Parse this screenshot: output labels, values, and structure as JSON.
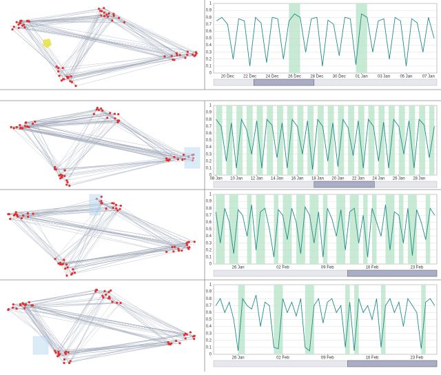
{
  "chart_data": [
    {
      "type": "line",
      "categories": [
        null,
        null,
        "20 Dec",
        null,
        null,
        null,
        "22 Dec",
        null,
        null,
        null,
        "24 Dec",
        null,
        null,
        null,
        "26 Dec",
        null,
        null,
        null,
        "28 Dec",
        null,
        null,
        null,
        "30 Dec",
        null,
        null,
        null,
        "01 Jan",
        null,
        null,
        null,
        "03 Jan",
        null,
        null,
        null,
        "05 Jan",
        null,
        null,
        null,
        "07 Jan",
        null
      ],
      "values": [
        0.75,
        0.8,
        0.7,
        0.2,
        0.78,
        0.75,
        0.1,
        0.8,
        0.72,
        0.15,
        0.8,
        0.78,
        0.2,
        0.75,
        0.85,
        0.8,
        0.3,
        0.78,
        0.8,
        0.1,
        0.76,
        0.7,
        0.25,
        0.8,
        0.78,
        0.12,
        0.85,
        0.8,
        0.3,
        0.75,
        0.78,
        0.2,
        0.8,
        0.75,
        0.1,
        0.78,
        0.72,
        0.3,
        0.8,
        0.5
      ],
      "color": "#1f8a8a",
      "highlight_color": "#c6ead3",
      "highlights": [
        [
          13,
          15
        ],
        [
          25,
          27
        ]
      ],
      "ylim": [
        0,
        1
      ],
      "yticks": [
        0,
        0.1,
        0.2,
        0.3,
        0.4,
        0.5,
        0.6,
        0.7,
        0.8,
        0.9,
        1
      ],
      "grid": true
    },
    {
      "type": "line",
      "categories": [
        "08 Jan",
        null,
        null,
        null,
        "10 Jan",
        null,
        null,
        null,
        "12 Jan",
        null,
        null,
        null,
        "14 Jan",
        null,
        null,
        null,
        "16 Jan",
        null,
        null,
        null,
        "18 Jan",
        null,
        null,
        null,
        "20 Jan",
        null,
        null,
        null,
        "22 Jan",
        null,
        null,
        null,
        "24 Jan",
        null,
        null,
        null,
        "26 Jan",
        null,
        null,
        null,
        "28 Jan",
        null,
        null,
        null
      ],
      "values": [
        0.8,
        0.7,
        0.2,
        0.75,
        0.1,
        0.8,
        0.65,
        0.3,
        0.78,
        0.1,
        0.8,
        0.72,
        0.25,
        0.75,
        0.1,
        0.8,
        0.7,
        0.3,
        0.78,
        0.08,
        0.8,
        0.7,
        0.2,
        0.75,
        0.12,
        0.8,
        0.68,
        0.28,
        0.78,
        0.1,
        0.8,
        0.7,
        0.2,
        0.76,
        0.1,
        0.8,
        0.7,
        0.3,
        0.78,
        0.1,
        0.8,
        0.72,
        0.25,
        0.7
      ],
      "color": "#1f8a8a",
      "highlight_color": "#c6ead3",
      "highlights": [
        [
          0,
          1.2
        ],
        [
          2,
          3.2
        ],
        [
          4,
          5.2
        ],
        [
          6,
          7.2
        ],
        [
          8,
          9.2
        ],
        [
          10,
          11.2
        ],
        [
          12,
          13.2
        ],
        [
          14,
          15.2
        ],
        [
          16,
          17.2
        ],
        [
          18,
          19.2
        ],
        [
          20,
          21.2
        ],
        [
          22,
          23.2
        ],
        [
          24,
          25.2
        ],
        [
          26,
          27.2
        ],
        [
          28,
          29.2
        ],
        [
          30,
          31.2
        ],
        [
          32,
          33.2
        ],
        [
          34,
          35.2
        ],
        [
          36,
          37.2
        ],
        [
          38,
          39.2
        ],
        [
          40,
          41.2
        ],
        [
          42,
          43
        ]
      ],
      "ylim": [
        0,
        1
      ],
      "yticks": [
        0,
        0.1,
        0.2,
        0.3,
        0.4,
        0.5,
        0.6,
        0.7,
        0.8,
        0.9,
        1
      ],
      "grid": true
    },
    {
      "type": "line",
      "categories": [
        null,
        null,
        null,
        null,
        null,
        "26 Jan",
        null,
        null,
        null,
        null,
        null,
        null,
        null,
        null,
        null,
        "02 Feb",
        null,
        null,
        null,
        null,
        null,
        null,
        null,
        null,
        null,
        "09 Feb",
        null,
        null,
        null,
        null,
        null,
        null,
        null,
        null,
        null,
        "16 Feb",
        null,
        null,
        null,
        null,
        null,
        null,
        null,
        null,
        null,
        "23 Feb",
        null,
        null,
        null,
        null
      ],
      "values": [
        0.75,
        0.3,
        0.8,
        0.6,
        0.15,
        0.78,
        0.7,
        0.4,
        0.85,
        0.2,
        0.75,
        0.8,
        0.5,
        0.1,
        0.78,
        0.7,
        0.35,
        0.8,
        0.6,
        0.15,
        0.82,
        0.7,
        0.3,
        0.75,
        0.1,
        0.8,
        0.65,
        0.4,
        0.78,
        0.2,
        0.75,
        0.8,
        0.3,
        0.7,
        0.1,
        0.8,
        0.6,
        0.4,
        0.85,
        0.2,
        0.75,
        0.7,
        0.3,
        0.8,
        0.12,
        0.78,
        0.6,
        0.35,
        0.8,
        0.7
      ],
      "color": "#1f8a8a",
      "highlight_color": "#c6ead3",
      "highlights": [
        [
          0,
          2
        ],
        [
          3,
          5
        ],
        [
          7,
          8
        ],
        [
          9,
          11
        ],
        [
          13,
          14
        ],
        [
          15,
          17
        ],
        [
          18,
          20
        ],
        [
          21,
          23
        ],
        [
          24,
          25
        ],
        [
          27,
          29
        ],
        [
          30,
          32
        ],
        [
          33,
          34
        ],
        [
          35,
          36
        ],
        [
          38,
          40
        ],
        [
          41,
          42
        ],
        [
          43,
          45
        ],
        [
          47,
          48
        ]
      ],
      "ylim": [
        0,
        1
      ],
      "yticks": [
        0,
        0.1,
        0.2,
        0.3,
        0.4,
        0.5,
        0.6,
        0.7,
        0.8,
        0.9,
        1
      ],
      "grid": true
    },
    {
      "type": "line",
      "categories": [
        null,
        null,
        null,
        null,
        null,
        "26 Jan",
        null,
        null,
        null,
        null,
        null,
        null,
        null,
        null,
        null,
        "02 Feb",
        null,
        null,
        null,
        null,
        null,
        null,
        null,
        null,
        null,
        "09 Feb",
        null,
        null,
        null,
        null,
        null,
        null,
        null,
        null,
        null,
        "16 Feb",
        null,
        null,
        null,
        null,
        null,
        null,
        null,
        null,
        null,
        "23 Feb",
        null,
        null,
        null,
        null
      ],
      "values": [
        0.7,
        0.8,
        0.6,
        0.75,
        0.5,
        0.05,
        0.8,
        0.7,
        0.65,
        0.85,
        0.4,
        0.75,
        0.7,
        0.1,
        0.08,
        0.8,
        0.6,
        0.75,
        0.55,
        0.8,
        0.1,
        0.05,
        0.7,
        0.8,
        0.45,
        0.75,
        0.8,
        0.6,
        0.7,
        0.1,
        0.75,
        0.05,
        0.8,
        0.6,
        0.7,
        0.5,
        0.8,
        0.1,
        0.7,
        0.8,
        0.6,
        0.75,
        0.4,
        0.8,
        0.7,
        0.6,
        0.08,
        0.75,
        0.8,
        0.7
      ],
      "color": "#1f8a8a",
      "highlight_color": "#c6ead3",
      "highlights": [
        [
          5,
          6.5
        ],
        [
          13,
          15
        ],
        [
          20,
          22
        ],
        [
          29,
          30
        ],
        [
          31,
          32
        ],
        [
          37,
          38
        ],
        [
          46,
          47
        ]
      ],
      "ylim": [
        0,
        1
      ],
      "yticks": [
        0,
        0.1,
        0.2,
        0.3,
        0.4,
        0.5,
        0.6,
        0.7,
        0.8,
        0.9,
        1
      ],
      "grid": true
    }
  ]
}
